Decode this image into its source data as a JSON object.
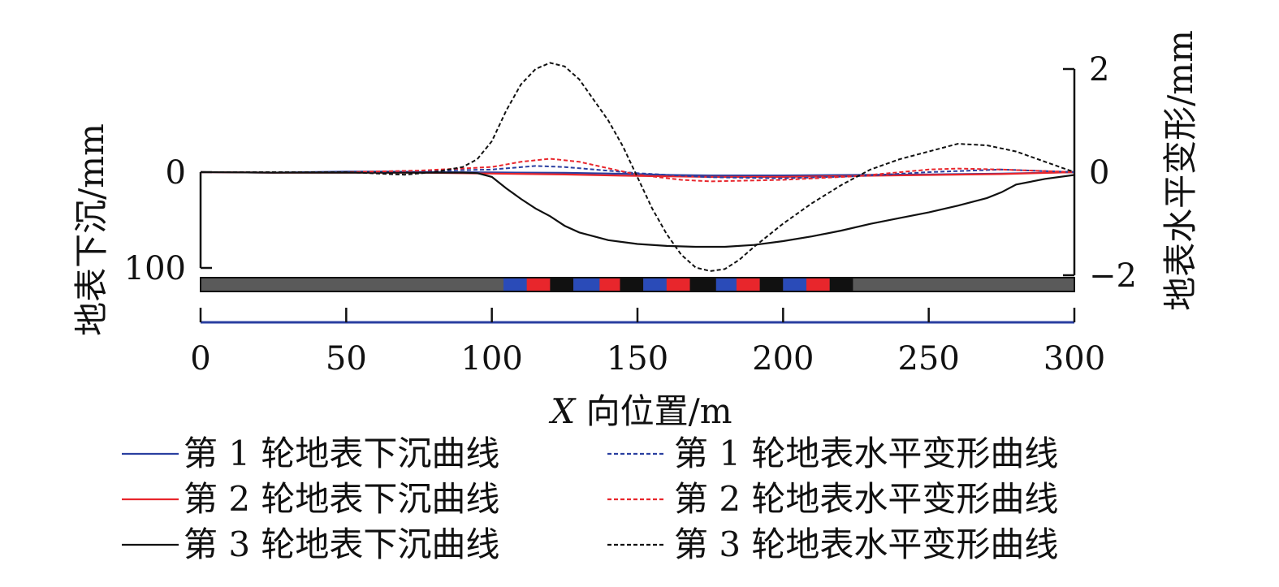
{
  "chart_data": {
    "type": "line",
    "xlabel_italic": "X",
    "xlabel_rest": " 向位置/m",
    "ylabel_left": "地表下沉/mm",
    "ylabel_right": "地表水平变形/mm",
    "xlim": [
      0,
      300
    ],
    "ylim_left": [
      100,
      0
    ],
    "ylim_right": [
      -2,
      2
    ],
    "x_ticks": [
      0,
      50,
      100,
      150,
      200,
      250,
      300
    ],
    "y_left_ticks": [
      0,
      100
    ],
    "y_right_ticks": [
      2,
      0,
      -2
    ],
    "x_tick_labels": [
      "0",
      "50",
      "100",
      "150",
      "200",
      "250",
      "300"
    ],
    "y_left_tick_labels": [
      "0",
      "100"
    ],
    "y_right_tick_labels": [
      "2",
      "0",
      "−2"
    ],
    "legend_position": "bottom",
    "colors": {
      "blue": "#2a3fa0",
      "red": "#e8262c",
      "black": "#111111",
      "bar_gray": "#5a5a5a",
      "bar_blue": "#2a4bb8",
      "bar_red": "#e8262c"
    },
    "panel_strip": {
      "range": [
        0,
        300
      ],
      "mined_segments": [
        {
          "color": "blue",
          "x": [
            104,
            112
          ]
        },
        {
          "color": "red",
          "x": [
            112,
            120
          ]
        },
        {
          "color": "black",
          "x": [
            120,
            128
          ]
        },
        {
          "color": "blue",
          "x": [
            128,
            137
          ]
        },
        {
          "color": "red",
          "x": [
            137,
            144
          ]
        },
        {
          "color": "black",
          "x": [
            144,
            152
          ]
        },
        {
          "color": "blue",
          "x": [
            152,
            160
          ]
        },
        {
          "color": "red",
          "x": [
            160,
            168
          ]
        },
        {
          "color": "black",
          "x": [
            168,
            177
          ]
        },
        {
          "color": "blue",
          "x": [
            177,
            184
          ]
        },
        {
          "color": "red",
          "x": [
            184,
            192
          ]
        },
        {
          "color": "black",
          "x": [
            192,
            200
          ]
        },
        {
          "color": "blue",
          "x": [
            200,
            208
          ]
        },
        {
          "color": "red",
          "x": [
            208,
            216
          ]
        },
        {
          "color": "black",
          "x": [
            216,
            224
          ]
        }
      ]
    },
    "series": [
      {
        "name": "第 1 轮地表下沉曲线",
        "axis": "left",
        "color": "blue",
        "dash": false,
        "x": [
          0,
          25,
          50,
          65,
          80,
          100,
          125,
          150,
          160,
          175,
          200,
          225,
          250,
          275,
          300
        ],
        "y": [
          0,
          0.5,
          -0.5,
          -0.5,
          0,
          0.3,
          0.8,
          2.0,
          3.0,
          3.5,
          3.5,
          3.0,
          2.5,
          1.5,
          0
        ]
      },
      {
        "name": "第 2 轮地表下沉曲线",
        "axis": "left",
        "color": "red",
        "dash": false,
        "x": [
          0,
          25,
          50,
          75,
          100,
          125,
          150,
          175,
          200,
          225,
          250,
          275,
          300
        ],
        "y": [
          0,
          0.5,
          0.5,
          0.5,
          1.5,
          2.5,
          4.0,
          5.0,
          5.0,
          4.0,
          3.0,
          2.0,
          0
        ]
      },
      {
        "name": "第 3 轮地表下沉曲线",
        "axis": "left",
        "color": "black",
        "dash": false,
        "x": [
          0,
          25,
          50,
          75,
          90,
          95,
          100,
          105,
          110,
          115,
          120,
          125,
          130,
          140,
          150,
          160,
          170,
          180,
          190,
          200,
          210,
          220,
          230,
          240,
          250,
          260,
          270,
          275,
          280,
          290,
          300
        ],
        "y": [
          0,
          0.5,
          0.5,
          0.5,
          0.5,
          1.0,
          5.0,
          17.0,
          28.0,
          38.0,
          46.0,
          56.0,
          63.0,
          71.0,
          75.0,
          77.0,
          78.0,
          78.0,
          76.0,
          72.0,
          67.0,
          61.0,
          54.0,
          48.0,
          42.0,
          35.0,
          27.0,
          21.0,
          13.0,
          7.0,
          3.0
        ]
      },
      {
        "name": "第 1 轮地表水平变形曲线",
        "axis": "right",
        "color": "blue",
        "dash": true,
        "x": [
          0,
          25,
          50,
          75,
          100,
          115,
          125,
          150,
          175,
          200,
          225,
          250,
          275,
          300
        ],
        "y": [
          0,
          0,
          0,
          0.02,
          0.05,
          0.12,
          0.1,
          -0.02,
          -0.1,
          -0.12,
          -0.08,
          0.0,
          0.05,
          0
        ]
      },
      {
        "name": "第 2 轮地表水平变形曲线",
        "axis": "right",
        "color": "red",
        "dash": true,
        "x": [
          0,
          25,
          50,
          75,
          100,
          110,
          120,
          130,
          150,
          165,
          175,
          200,
          225,
          250,
          260,
          275,
          300
        ],
        "y": [
          0,
          0,
          0,
          0.03,
          0.1,
          0.2,
          0.26,
          0.2,
          -0.05,
          -0.15,
          -0.18,
          -0.15,
          -0.08,
          0.05,
          0.07,
          0.05,
          0
        ]
      },
      {
        "name": "第 3 轮地表水平变形曲线",
        "axis": "right",
        "color": "black",
        "dash": true,
        "x": [
          0,
          25,
          50,
          70,
          80,
          90,
          95,
          100,
          105,
          110,
          115,
          120,
          125,
          130,
          135,
          140,
          145,
          150,
          155,
          160,
          165,
          170,
          175,
          180,
          185,
          190,
          200,
          210,
          220,
          225,
          230,
          240,
          250,
          260,
          270,
          280,
          290,
          300
        ],
        "y": [
          0,
          0,
          0,
          -0.05,
          0,
          0.1,
          0.25,
          0.6,
          1.2,
          1.7,
          2.0,
          2.12,
          2.05,
          1.8,
          1.4,
          1.0,
          0.5,
          -0.1,
          -0.7,
          -1.2,
          -1.6,
          -1.85,
          -1.92,
          -1.88,
          -1.7,
          -1.45,
          -1.0,
          -0.6,
          -0.25,
          -0.1,
          0.05,
          0.25,
          0.4,
          0.55,
          0.52,
          0.4,
          0.2,
          0
        ]
      }
    ]
  }
}
